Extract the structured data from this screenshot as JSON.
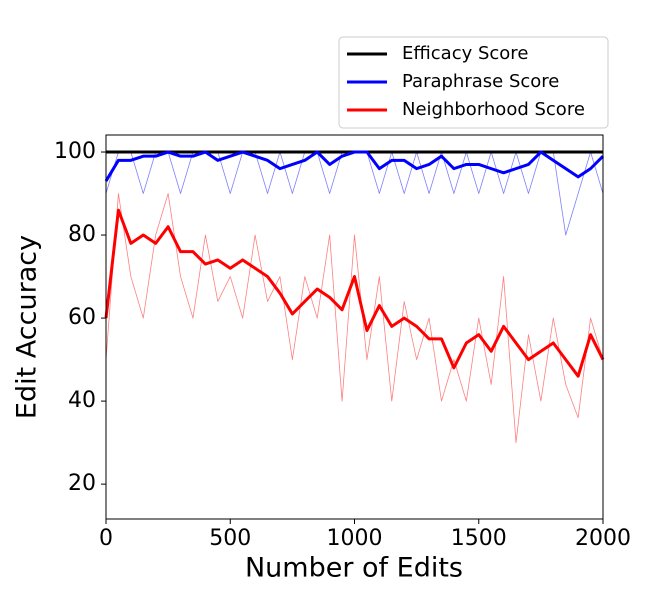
{
  "chart_data": {
    "type": "line",
    "x_label": "Number of Edits",
    "y_label": "Edit Accuracy",
    "x": [
      0,
      50,
      100,
      150,
      200,
      250,
      300,
      350,
      400,
      450,
      500,
      550,
      600,
      650,
      700,
      750,
      800,
      850,
      900,
      950,
      1000,
      1050,
      1100,
      1150,
      1200,
      1250,
      1300,
      1350,
      1400,
      1450,
      1500,
      1550,
      1600,
      1650,
      1700,
      1750,
      1800,
      1850,
      1900,
      1950,
      2000
    ],
    "series": [
      {
        "name": "Efficacy Score",
        "color": "#000000",
        "values": [
          100,
          100,
          100,
          100,
          100,
          100,
          100,
          100,
          100,
          100,
          100,
          100,
          100,
          100,
          100,
          100,
          100,
          100,
          100,
          100,
          100,
          100,
          100,
          100,
          100,
          100,
          100,
          100,
          100,
          100,
          100,
          100,
          100,
          100,
          100,
          100,
          100,
          100,
          100,
          100,
          100
        ]
      },
      {
        "name": "Paraphrase Score",
        "color": "#0000ff",
        "values": [
          93,
          98,
          98,
          99,
          99,
          100,
          99,
          99,
          100,
          98,
          99,
          100,
          99,
          98,
          96,
          97,
          98,
          100,
          97,
          99,
          100,
          100,
          96,
          98,
          98,
          96,
          97,
          99,
          96,
          97,
          97,
          96,
          95,
          96,
          97,
          100,
          98,
          96,
          94,
          96,
          99
        ]
      },
      {
        "name": "Neighborhood Score",
        "color": "#ff0000",
        "values": [
          60,
          86,
          78,
          80,
          78,
          82,
          76,
          76,
          73,
          74,
          72,
          74,
          72,
          70,
          66,
          61,
          64,
          67,
          65,
          62,
          70,
          57,
          63,
          58,
          60,
          58,
          55,
          55,
          48,
          54,
          56,
          52,
          58,
          54,
          50,
          52,
          54,
          50,
          46,
          56,
          50
        ]
      }
    ],
    "raw_series": [
      {
        "color": "#0000ff",
        "values": [
          90,
          100,
          100,
          90,
          100,
          100,
          90,
          100,
          100,
          100,
          90,
          100,
          100,
          90,
          100,
          90,
          100,
          100,
          90,
          100,
          100,
          100,
          90,
          100,
          90,
          100,
          90,
          100,
          90,
          100,
          90,
          100,
          90,
          100,
          90,
          100,
          100,
          80,
          90,
          100,
          90
        ]
      },
      {
        "color": "#ff0000",
        "values": [
          50,
          90,
          70,
          60,
          80,
          90,
          70,
          60,
          80,
          64,
          70,
          60,
          80,
          64,
          70,
          50,
          70,
          60,
          80,
          40,
          80,
          50,
          70,
          40,
          64,
          50,
          60,
          40,
          50,
          40,
          60,
          44,
          70,
          30,
          56,
          40,
          60,
          44,
          36,
          60,
          50
        ]
      }
    ],
    "xlim": [
      0,
      2000
    ],
    "xticks": [
      0,
      500,
      1000,
      1500,
      2000
    ],
    "ylim": [
      11.6,
      104.1
    ],
    "yticks": [
      20,
      40,
      60,
      80,
      100
    ],
    "legend": "upper right"
  }
}
